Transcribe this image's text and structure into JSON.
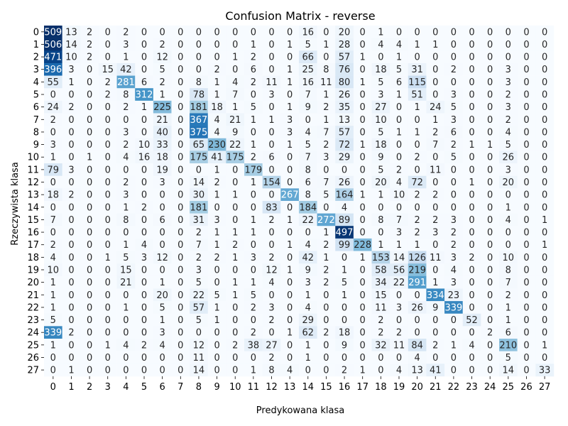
{
  "chart_data": {
    "type": "heatmap",
    "title": "Confusion Matrix - reverse",
    "xlabel": "Predykowana klasa",
    "ylabel": "Rzeczywista klasa",
    "x_labels": [
      "0",
      "1",
      "2",
      "3",
      "4",
      "5",
      "6",
      "7",
      "8",
      "9",
      "10",
      "11",
      "12",
      "13",
      "14",
      "15",
      "16",
      "17",
      "18",
      "19",
      "20",
      "21",
      "22",
      "23",
      "24",
      "25",
      "26",
      "27"
    ],
    "y_labels": [
      "0",
      "1",
      "2",
      "3",
      "4",
      "5",
      "6",
      "7",
      "8",
      "9",
      "10",
      "11",
      "12",
      "13",
      "14",
      "15",
      "16",
      "17",
      "18",
      "19",
      "20",
      "21",
      "22",
      "23",
      "24",
      "25",
      "26",
      "27"
    ],
    "colorscale": [
      "#f7fbff",
      "#08306b"
    ],
    "matrix": [
      [
        509,
        13,
        2,
        0,
        2,
        0,
        0,
        0,
        0,
        0,
        0,
        0,
        0,
        0,
        16,
        0,
        20,
        0,
        1,
        0,
        0,
        0,
        0,
        0,
        0,
        0,
        0,
        0
      ],
      [
        506,
        14,
        2,
        0,
        3,
        0,
        2,
        0,
        0,
        0,
        0,
        1,
        0,
        1,
        5,
        1,
        28,
        0,
        4,
        4,
        1,
        1,
        0,
        0,
        0,
        0,
        0,
        0
      ],
      [
        471,
        10,
        2,
        0,
        1,
        0,
        12,
        0,
        0,
        0,
        1,
        2,
        0,
        0,
        66,
        0,
        57,
        1,
        0,
        1,
        0,
        0,
        0,
        0,
        0,
        0,
        0,
        0
      ],
      [
        396,
        3,
        0,
        15,
        42,
        0,
        5,
        0,
        0,
        2,
        0,
        6,
        0,
        1,
        25,
        8,
        76,
        0,
        18,
        5,
        31,
        0,
        2,
        0,
        0,
        3,
        0,
        0
      ],
      [
        55,
        1,
        0,
        2,
        281,
        6,
        2,
        0,
        8,
        1,
        4,
        2,
        11,
        1,
        16,
        11,
        80,
        1,
        5,
        6,
        115,
        0,
        0,
        0,
        0,
        3,
        0,
        0
      ],
      [
        0,
        0,
        0,
        2,
        8,
        312,
        1,
        0,
        78,
        1,
        7,
        0,
        3,
        0,
        7,
        1,
        26,
        0,
        3,
        1,
        51,
        0,
        3,
        0,
        0,
        2,
        0,
        0
      ],
      [
        24,
        2,
        0,
        0,
        2,
        1,
        225,
        0,
        181,
        18,
        1,
        5,
        0,
        1,
        9,
        2,
        35,
        0,
        27,
        0,
        1,
        24,
        5,
        0,
        0,
        3,
        0,
        0
      ],
      [
        2,
        0,
        0,
        0,
        0,
        0,
        21,
        0,
        367,
        4,
        21,
        1,
        1,
        3,
        0,
        1,
        13,
        0,
        10,
        0,
        0,
        1,
        3,
        0,
        0,
        2,
        0,
        0
      ],
      [
        0,
        0,
        0,
        0,
        3,
        0,
        40,
        0,
        375,
        4,
        9,
        0,
        0,
        3,
        4,
        7,
        57,
        0,
        5,
        1,
        1,
        2,
        6,
        0,
        0,
        4,
        0,
        0
      ],
      [
        3,
        0,
        0,
        0,
        2,
        10,
        33,
        0,
        65,
        230,
        22,
        1,
        0,
        1,
        5,
        2,
        72,
        1,
        18,
        0,
        0,
        7,
        2,
        1,
        1,
        5,
        0,
        0
      ],
      [
        1,
        0,
        1,
        0,
        4,
        16,
        18,
        0,
        175,
        41,
        175,
        2,
        6,
        0,
        7,
        3,
        29,
        0,
        9,
        0,
        2,
        0,
        5,
        0,
        0,
        26,
        0,
        0
      ],
      [
        79,
        3,
        0,
        0,
        0,
        0,
        19,
        0,
        0,
        1,
        0,
        179,
        0,
        0,
        8,
        0,
        0,
        0,
        5,
        2,
        0,
        11,
        0,
        0,
        0,
        3,
        0,
        0
      ],
      [
        0,
        0,
        0,
        0,
        2,
        0,
        3,
        0,
        14,
        2,
        0,
        1,
        154,
        0,
        6,
        7,
        26,
        0,
        20,
        4,
        72,
        0,
        0,
        1,
        0,
        20,
        0,
        0
      ],
      [
        18,
        2,
        0,
        0,
        3,
        0,
        0,
        0,
        30,
        1,
        1,
        0,
        0,
        267,
        8,
        5,
        164,
        1,
        1,
        10,
        2,
        2,
        0,
        0,
        0,
        0,
        0,
        0
      ],
      [
        0,
        0,
        0,
        0,
        1,
        2,
        0,
        0,
        181,
        0,
        0,
        0,
        83,
        0,
        184,
        0,
        4,
        0,
        0,
        0,
        0,
        0,
        0,
        0,
        0,
        1,
        0,
        0
      ],
      [
        7,
        0,
        0,
        0,
        8,
        0,
        6,
        0,
        31,
        3,
        0,
        1,
        2,
        1,
        22,
        272,
        89,
        0,
        8,
        7,
        2,
        2,
        3,
        0,
        0,
        4,
        0,
        1
      ],
      [
        0,
        0,
        0,
        0,
        0,
        0,
        0,
        0,
        2,
        1,
        1,
        1,
        0,
        0,
        0,
        1,
        497,
        0,
        0,
        3,
        2,
        3,
        2,
        0,
        0,
        0,
        0,
        0
      ],
      [
        2,
        0,
        0,
        0,
        1,
        4,
        0,
        0,
        7,
        1,
        2,
        0,
        0,
        1,
        4,
        2,
        99,
        228,
        1,
        1,
        1,
        0,
        2,
        0,
        0,
        0,
        0,
        1
      ],
      [
        4,
        0,
        0,
        1,
        5,
        3,
        12,
        0,
        2,
        2,
        1,
        3,
        2,
        0,
        42,
        1,
        0,
        1,
        153,
        14,
        126,
        11,
        3,
        2,
        0,
        10,
        0,
        0
      ],
      [
        10,
        0,
        0,
        0,
        15,
        0,
        0,
        0,
        3,
        0,
        0,
        0,
        12,
        1,
        9,
        2,
        1,
        0,
        58,
        56,
        219,
        0,
        4,
        0,
        0,
        8,
        0,
        0
      ],
      [
        1,
        0,
        0,
        0,
        21,
        0,
        1,
        0,
        5,
        0,
        1,
        1,
        4,
        0,
        3,
        2,
        5,
        0,
        34,
        22,
        291,
        1,
        3,
        0,
        0,
        7,
        0,
        0
      ],
      [
        1,
        0,
        0,
        0,
        0,
        0,
        20,
        0,
        22,
        5,
        1,
        5,
        0,
        0,
        1,
        0,
        1,
        0,
        15,
        0,
        0,
        334,
        23,
        0,
        0,
        2,
        0,
        0
      ],
      [
        1,
        0,
        0,
        0,
        1,
        0,
        5,
        0,
        57,
        1,
        0,
        2,
        3,
        0,
        4,
        0,
        0,
        0,
        11,
        3,
        26,
        9,
        339,
        0,
        0,
        1,
        0,
        0
      ],
      [
        5,
        0,
        0,
        0,
        0,
        0,
        1,
        0,
        5,
        1,
        0,
        0,
        2,
        0,
        29,
        0,
        0,
        0,
        2,
        0,
        0,
        0,
        0,
        52,
        0,
        1,
        0,
        0
      ],
      [
        339,
        2,
        0,
        0,
        0,
        0,
        3,
        0,
        0,
        0,
        0,
        2,
        0,
        1,
        62,
        2,
        18,
        0,
        2,
        2,
        0,
        0,
        0,
        0,
        2,
        6,
        0,
        0
      ],
      [
        1,
        0,
        0,
        1,
        4,
        2,
        4,
        0,
        12,
        0,
        2,
        38,
        27,
        0,
        1,
        0,
        9,
        0,
        32,
        11,
        84,
        2,
        1,
        4,
        0,
        210,
        0,
        1
      ],
      [
        0,
        0,
        0,
        0,
        0,
        0,
        0,
        0,
        11,
        0,
        0,
        0,
        2,
        0,
        1,
        0,
        0,
        0,
        0,
        0,
        4,
        0,
        0,
        0,
        0,
        5,
        0,
        0
      ],
      [
        0,
        1,
        0,
        0,
        0,
        0,
        0,
        0,
        14,
        0,
        0,
        1,
        8,
        4,
        0,
        0,
        2,
        1,
        0,
        4,
        13,
        41,
        0,
        0,
        0,
        14,
        0,
        33
      ]
    ]
  }
}
